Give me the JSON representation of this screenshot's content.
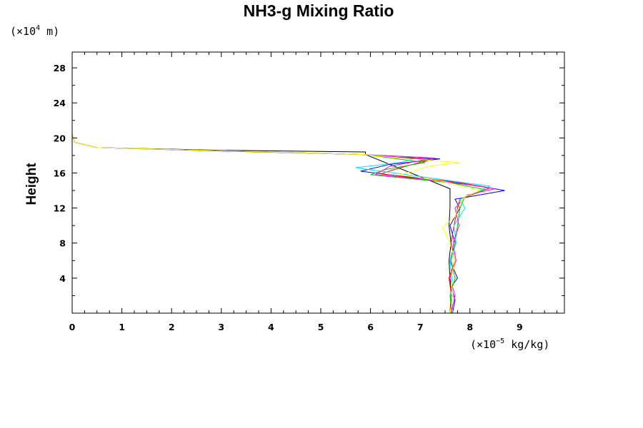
{
  "chart_data": {
    "type": "line",
    "title": "NH3-g Mixing Ratio",
    "ylabel": "Height",
    "xlabel": "",
    "y_unit": {
      "prefix": "(×10",
      "exp": "4",
      "suffix": " m)"
    },
    "x_unit": {
      "prefix": "(×10",
      "exp": "−5",
      "suffix": " kg/kg)"
    },
    "xlim": [
      0,
      9.9
    ],
    "ylim": [
      0,
      29.8
    ],
    "x_ticks": [
      "0",
      "1",
      "2",
      "3",
      "4",
      "5",
      "6",
      "7",
      "8",
      "9"
    ],
    "y_ticks": [
      "4",
      "8",
      "12",
      "16",
      "20",
      "24",
      "28"
    ],
    "grid": false,
    "legend": "none",
    "series": [
      {
        "color": "#000000",
        "points": [
          [
            7.6,
            0
          ],
          [
            7.62,
            2
          ],
          [
            7.6,
            4
          ],
          [
            7.58,
            6
          ],
          [
            7.62,
            8
          ],
          [
            7.58,
            10
          ],
          [
            7.6,
            12
          ],
          [
            7.6,
            13.9
          ],
          [
            7.6,
            14.2
          ],
          [
            5.9,
            18.1
          ],
          [
            5.9,
            18.4
          ],
          [
            3.0,
            18.6
          ],
          [
            0.5,
            18.9
          ],
          [
            0.05,
            19.5
          ],
          [
            0,
            20.5
          ],
          [
            0,
            29.8
          ]
        ]
      },
      {
        "color": "#0000ff",
        "points": [
          [
            7.65,
            0
          ],
          [
            7.7,
            1.5
          ],
          [
            7.62,
            3
          ],
          [
            7.75,
            4
          ],
          [
            7.6,
            6
          ],
          [
            7.7,
            8
          ],
          [
            7.6,
            10
          ],
          [
            7.8,
            12
          ],
          [
            7.7,
            13
          ],
          [
            8.7,
            14
          ],
          [
            8.2,
            14.5
          ],
          [
            7.2,
            15.2
          ],
          [
            5.8,
            16.2
          ],
          [
            6.4,
            17
          ],
          [
            7.4,
            17.6
          ],
          [
            6.5,
            17.8
          ],
          [
            5.9,
            18.1
          ],
          [
            3.0,
            18.5
          ],
          [
            0.5,
            18.9
          ],
          [
            0.05,
            19.5
          ],
          [
            0,
            20.5
          ],
          [
            0,
            29.8
          ]
        ]
      },
      {
        "color": "#ff0000",
        "points": [
          [
            7.6,
            0
          ],
          [
            7.63,
            2
          ],
          [
            7.58,
            4
          ],
          [
            7.7,
            6
          ],
          [
            7.62,
            8
          ],
          [
            7.68,
            10
          ],
          [
            7.75,
            12
          ],
          [
            7.8,
            13
          ],
          [
            8.4,
            14.3
          ],
          [
            7.7,
            15
          ],
          [
            6.2,
            15.9
          ],
          [
            6.6,
            16.6
          ],
          [
            7.2,
            17.5
          ],
          [
            5.9,
            18.1
          ],
          [
            3.0,
            18.55
          ],
          [
            0.5,
            18.9
          ],
          [
            0.05,
            19.5
          ],
          [
            0,
            20.5
          ],
          [
            0,
            29.8
          ]
        ]
      },
      {
        "color": "#00cc00",
        "points": [
          [
            7.64,
            0
          ],
          [
            7.6,
            2
          ],
          [
            7.7,
            4
          ],
          [
            7.62,
            6
          ],
          [
            7.7,
            8
          ],
          [
            7.75,
            10
          ],
          [
            7.8,
            12
          ],
          [
            7.9,
            13.3
          ],
          [
            8.3,
            14.1
          ],
          [
            7.6,
            14.9
          ],
          [
            6.0,
            15.8
          ],
          [
            6.3,
            16.4
          ],
          [
            7.1,
            17.2
          ],
          [
            5.9,
            18.1
          ],
          [
            3.0,
            18.55
          ],
          [
            0.5,
            18.9
          ],
          [
            0.05,
            19.5
          ],
          [
            0,
            20.5
          ],
          [
            0,
            29.8
          ]
        ]
      },
      {
        "color": "#00e5ff",
        "points": [
          [
            7.66,
            0
          ],
          [
            7.62,
            2
          ],
          [
            7.64,
            4
          ],
          [
            7.6,
            6
          ],
          [
            7.72,
            8
          ],
          [
            7.68,
            10
          ],
          [
            7.9,
            12
          ],
          [
            7.8,
            13
          ],
          [
            8.4,
            14.5
          ],
          [
            7.5,
            15.2
          ],
          [
            5.7,
            16.6
          ],
          [
            6.6,
            17.2
          ],
          [
            7.0,
            17.8
          ],
          [
            5.9,
            18.1
          ],
          [
            3.0,
            18.55
          ],
          [
            0.5,
            18.9
          ],
          [
            0.05,
            19.5
          ],
          [
            0,
            20.5
          ],
          [
            0,
            29.8
          ]
        ]
      },
      {
        "color": "#ff00ff",
        "points": [
          [
            7.62,
            0
          ],
          [
            7.7,
            2
          ],
          [
            7.6,
            4
          ],
          [
            7.72,
            6
          ],
          [
            7.66,
            8
          ],
          [
            7.78,
            10
          ],
          [
            7.7,
            12
          ],
          [
            7.95,
            13.5
          ],
          [
            8.5,
            14.2
          ],
          [
            7.6,
            15
          ],
          [
            6.1,
            15.8
          ],
          [
            6.4,
            16.8
          ],
          [
            7.3,
            17.7
          ],
          [
            5.9,
            18.1
          ],
          [
            3.0,
            18.55
          ],
          [
            0.5,
            18.9
          ],
          [
            0.05,
            19.5
          ],
          [
            0,
            20.5
          ],
          [
            0,
            29.8
          ]
        ]
      },
      {
        "color": "#ffff00",
        "points": [
          [
            7.6,
            0
          ],
          [
            7.66,
            2
          ],
          [
            7.62,
            4
          ],
          [
            7.7,
            6
          ],
          [
            7.6,
            8
          ],
          [
            7.45,
            9.8
          ],
          [
            7.7,
            11
          ],
          [
            7.8,
            12.5
          ],
          [
            7.9,
            13.3
          ],
          [
            8.2,
            14
          ],
          [
            7.5,
            15
          ],
          [
            6.6,
            15.8
          ],
          [
            7.2,
            16.8
          ],
          [
            7.8,
            17.2
          ],
          [
            6.8,
            17.6
          ],
          [
            5.9,
            18.1
          ],
          [
            3.0,
            18.55
          ],
          [
            0.5,
            18.9
          ],
          [
            0.05,
            19.5
          ],
          [
            0,
            20.5
          ],
          [
            0,
            29.8
          ]
        ]
      }
    ]
  }
}
